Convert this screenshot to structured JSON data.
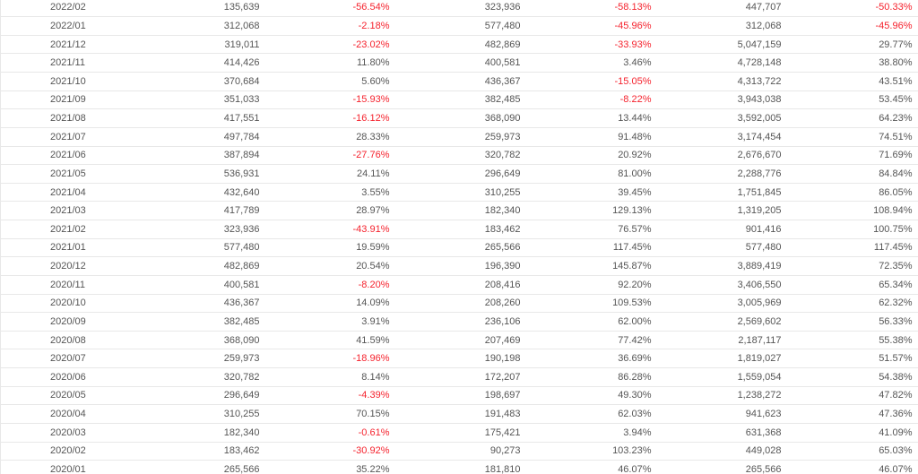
{
  "table": {
    "rows": [
      [
        "2022/02",
        "135,639",
        "-56.54%",
        "323,936",
        "-58.13%",
        "447,707",
        "-50.33%"
      ],
      [
        "2022/01",
        "312,068",
        "-2.18%",
        "577,480",
        "-45.96%",
        "312,068",
        "-45.96%"
      ],
      [
        "2021/12",
        "319,011",
        "-23.02%",
        "482,869",
        "-33.93%",
        "5,047,159",
        "29.77%"
      ],
      [
        "2021/11",
        "414,426",
        "11.80%",
        "400,581",
        "3.46%",
        "4,728,148",
        "38.80%"
      ],
      [
        "2021/10",
        "370,684",
        "5.60%",
        "436,367",
        "-15.05%",
        "4,313,722",
        "43.51%"
      ],
      [
        "2021/09",
        "351,033",
        "-15.93%",
        "382,485",
        "-8.22%",
        "3,943,038",
        "53.45%"
      ],
      [
        "2021/08",
        "417,551",
        "-16.12%",
        "368,090",
        "13.44%",
        "3,592,005",
        "64.23%"
      ],
      [
        "2021/07",
        "497,784",
        "28.33%",
        "259,973",
        "91.48%",
        "3,174,454",
        "74.51%"
      ],
      [
        "2021/06",
        "387,894",
        "-27.76%",
        "320,782",
        "20.92%",
        "2,676,670",
        "71.69%"
      ],
      [
        "2021/05",
        "536,931",
        "24.11%",
        "296,649",
        "81.00%",
        "2,288,776",
        "84.84%"
      ],
      [
        "2021/04",
        "432,640",
        "3.55%",
        "310,255",
        "39.45%",
        "1,751,845",
        "86.05%"
      ],
      [
        "2021/03",
        "417,789",
        "28.97%",
        "182,340",
        "129.13%",
        "1,319,205",
        "108.94%"
      ],
      [
        "2021/02",
        "323,936",
        "-43.91%",
        "183,462",
        "76.57%",
        "901,416",
        "100.75%"
      ],
      [
        "2021/01",
        "577,480",
        "19.59%",
        "265,566",
        "117.45%",
        "577,480",
        "117.45%"
      ],
      [
        "2020/12",
        "482,869",
        "20.54%",
        "196,390",
        "145.87%",
        "3,889,419",
        "72.35%"
      ],
      [
        "2020/11",
        "400,581",
        "-8.20%",
        "208,416",
        "92.20%",
        "3,406,550",
        "65.34%"
      ],
      [
        "2020/10",
        "436,367",
        "14.09%",
        "208,260",
        "109.53%",
        "3,005,969",
        "62.32%"
      ],
      [
        "2020/09",
        "382,485",
        "3.91%",
        "236,106",
        "62.00%",
        "2,569,602",
        "56.33%"
      ],
      [
        "2020/08",
        "368,090",
        "41.59%",
        "207,469",
        "77.42%",
        "2,187,117",
        "55.38%"
      ],
      [
        "2020/07",
        "259,973",
        "-18.96%",
        "190,198",
        "36.69%",
        "1,819,027",
        "51.57%"
      ],
      [
        "2020/06",
        "320,782",
        "8.14%",
        "172,207",
        "86.28%",
        "1,559,054",
        "54.38%"
      ],
      [
        "2020/05",
        "296,649",
        "-4.39%",
        "198,697",
        "49.30%",
        "1,238,272",
        "47.82%"
      ],
      [
        "2020/04",
        "310,255",
        "70.15%",
        "191,483",
        "62.03%",
        "941,623",
        "47.36%"
      ],
      [
        "2020/03",
        "182,340",
        "-0.61%",
        "175,421",
        "3.94%",
        "631,368",
        "41.09%"
      ],
      [
        "2020/02",
        "183,462",
        "-30.92%",
        "90,273",
        "103.23%",
        "449,028",
        "65.03%"
      ],
      [
        "2020/01",
        "265,566",
        "35.22%",
        "181,810",
        "46.07%",
        "265,566",
        "46.07%"
      ]
    ]
  }
}
